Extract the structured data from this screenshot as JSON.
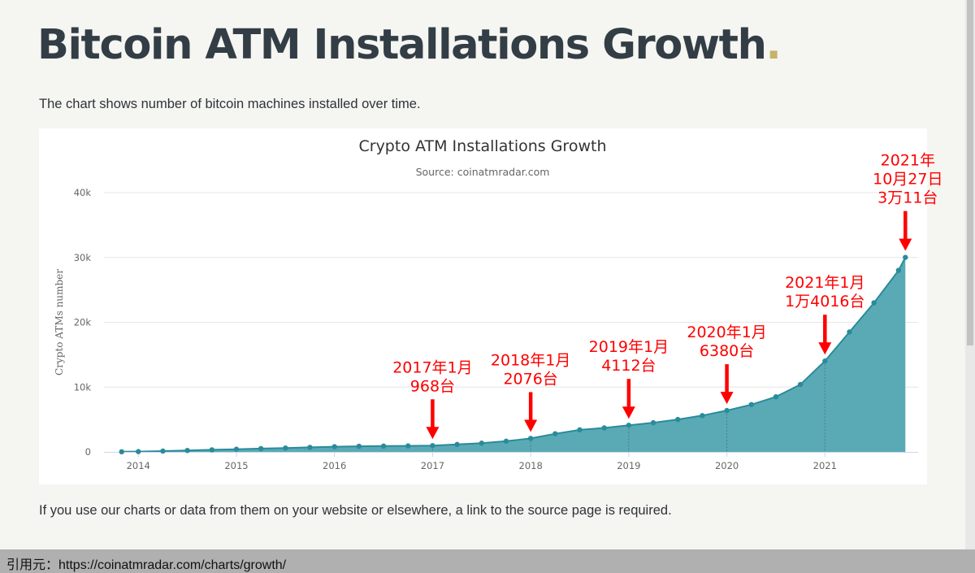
{
  "page": {
    "title": "Bitcoin ATM Installations Growth",
    "title_dot": ".",
    "subtitle": "The chart shows number of bitcoin machines installed over time.",
    "footer_note": "If you use our charts or data from them on your website or elsewhere, a link to the source page is required."
  },
  "source_bar": {
    "text": "引用元：https://coinatmradar.com/charts/growth/"
  },
  "colors": {
    "accent_dot": "#c5b36a",
    "series": "#2a8b9a",
    "area_fill": "#5aaab6",
    "annotation": "#ff0000"
  },
  "chart_data": {
    "type": "area",
    "title": "Crypto ATM Installations Growth",
    "subtitle": "Source: coinatmradar.com",
    "xlabel": "",
    "ylabel": "Crypto ATMs number",
    "x_tick_labels": [
      "2014",
      "2015",
      "2016",
      "2017",
      "2018",
      "2019",
      "2020",
      "2021"
    ],
    "x_ticks": [
      2014,
      2015,
      2016,
      2017,
      2018,
      2019,
      2020,
      2021
    ],
    "y_tick_labels": [
      "0",
      "10k",
      "20k",
      "30k",
      "40k"
    ],
    "y_ticks": [
      0,
      10000,
      20000,
      30000,
      40000
    ],
    "ylim": [
      0,
      40000
    ],
    "xlim": [
      2013.65,
      2021.95
    ],
    "grid": true,
    "legend": "none",
    "series": [
      {
        "x": [
          2013.83,
          2014.0,
          2014.25,
          2014.5,
          2014.75,
          2015.0,
          2015.25,
          2015.5,
          2015.75,
          2016.0,
          2016.25,
          2016.5,
          2016.75,
          2017.0,
          2017.25,
          2017.5,
          2017.75,
          2018.0,
          2018.25,
          2018.5,
          2018.75,
          2019.0,
          2019.25,
          2019.5,
          2019.75,
          2020.0,
          2020.25,
          2020.5,
          2020.75,
          2021.0,
          2021.25,
          2021.5,
          2021.75,
          2021.82
        ],
        "y": [
          20,
          50,
          130,
          220,
          320,
          420,
          510,
          600,
          700,
          800,
          870,
          900,
          930,
          968,
          1150,
          1350,
          1650,
          2076,
          2800,
          3400,
          3700,
          4112,
          4500,
          5000,
          5600,
          6380,
          7300,
          8500,
          10400,
          14016,
          18500,
          23000,
          28000,
          30011
        ]
      }
    ],
    "annotations": [
      {
        "lines": [
          "2017年1月",
          "968台"
        ],
        "x": 2017.0,
        "y": 968
      },
      {
        "lines": [
          "2018年1月",
          "2076台"
        ],
        "x": 2018.0,
        "y": 2076
      },
      {
        "lines": [
          "2019年1月",
          "4112台"
        ],
        "x": 2019.0,
        "y": 4112
      },
      {
        "lines": [
          "2020年1月",
          "6380台"
        ],
        "x": 2020.0,
        "y": 6380
      },
      {
        "lines": [
          "2021年1月",
          "1万4016台"
        ],
        "x": 2021.0,
        "y": 14016
      },
      {
        "lines": [
          "2021年",
          "10月27日",
          "3万11台"
        ],
        "x": 2021.82,
        "y": 30011
      }
    ]
  }
}
